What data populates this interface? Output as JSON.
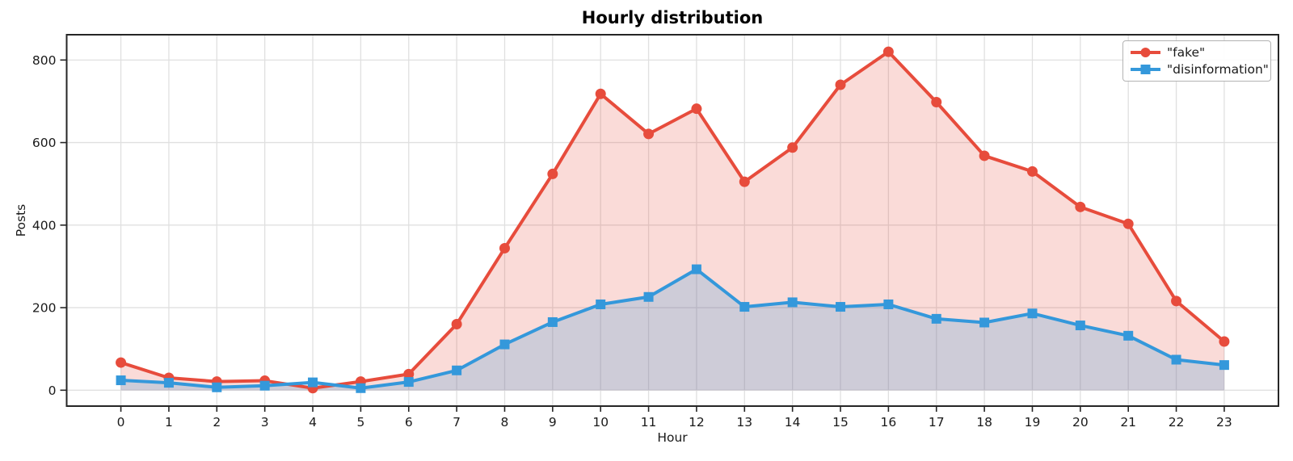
{
  "chart_data": {
    "type": "line",
    "title": "Hourly distribution",
    "xlabel": "Hour",
    "ylabel": "Posts",
    "x": [
      0,
      1,
      2,
      3,
      4,
      5,
      6,
      7,
      8,
      9,
      10,
      11,
      12,
      13,
      14,
      15,
      16,
      17,
      18,
      19,
      20,
      21,
      22,
      23
    ],
    "series": [
      {
        "key": "fake",
        "name": "\"fake\"",
        "marker": "circle",
        "color": "#e74c3c",
        "fill": "rgba(231,76,60,0.2)",
        "values": [
          67,
          30,
          21,
          23,
          5,
          21,
          39,
          160,
          344,
          524,
          718,
          621,
          682,
          505,
          588,
          740,
          820,
          698,
          568,
          530,
          444,
          403,
          216,
          118
        ]
      },
      {
        "key": "disinformation",
        "name": "\"disinformation\"",
        "marker": "square",
        "color": "#3498db",
        "fill": "rgba(52,152,219,0.22)",
        "values": [
          24,
          18,
          7,
          11,
          19,
          5,
          20,
          48,
          111,
          165,
          208,
          226,
          293,
          202,
          213,
          202,
          208,
          173,
          164,
          186,
          157,
          132,
          74,
          61
        ]
      }
    ],
    "yticks": [
      0,
      200,
      400,
      600,
      800
    ],
    "xlim": [
      -1.13,
      24.13
    ],
    "ylim": [
      -38.5,
      861.3
    ],
    "grid": true,
    "legend_position": "upper right",
    "colors": {
      "grid": "#e0e0e0",
      "spine": "#262626",
      "tick_label": "#1a1a1a"
    }
  }
}
